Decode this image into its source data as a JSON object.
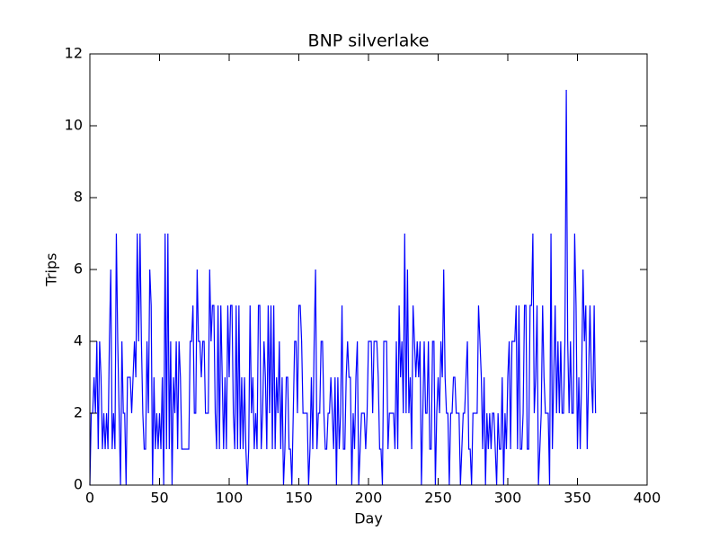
{
  "chart_data": {
    "type": "line",
    "title": "BNP silverlake",
    "x_label": "Day",
    "y_label": "Trips",
    "color": "#0000ff",
    "x": [
      0,
      1,
      2,
      3,
      4,
      5,
      6,
      7,
      8,
      9,
      10,
      11,
      12,
      13,
      14,
      15,
      16,
      17,
      18,
      19,
      20,
      21,
      22,
      23,
      24,
      25,
      26,
      27,
      28,
      29,
      30,
      31,
      32,
      33,
      34,
      35,
      36,
      37,
      38,
      39,
      40,
      41,
      42,
      43,
      44,
      45,
      46,
      47,
      48,
      49,
      50,
      51,
      52,
      53,
      54,
      55,
      56,
      57,
      58,
      59,
      60,
      61,
      62,
      63,
      64,
      65,
      66,
      67,
      68,
      69,
      70,
      71,
      72,
      73,
      74,
      75,
      76,
      77,
      78,
      79,
      80,
      81,
      82,
      83,
      84,
      85,
      86,
      87,
      88,
      89,
      90,
      91,
      92,
      93,
      94,
      95,
      96,
      97,
      98,
      99,
      100,
      101,
      102,
      103,
      104,
      105,
      106,
      107,
      108,
      109,
      110,
      111,
      112,
      113,
      114,
      115,
      116,
      117,
      118,
      119,
      120,
      121,
      122,
      123,
      124,
      125,
      126,
      127,
      128,
      129,
      130,
      131,
      132,
      133,
      134,
      135,
      136,
      137,
      138,
      139,
      140,
      141,
      142,
      143,
      144,
      145,
      146,
      147,
      148,
      149,
      150,
      151,
      152,
      153,
      154,
      155,
      156,
      157,
      158,
      159,
      160,
      161,
      162,
      163,
      164,
      165,
      166,
      167,
      168,
      169,
      170,
      171,
      172,
      173,
      174,
      175,
      176,
      177,
      178,
      179,
      180,
      181,
      182,
      183,
      184,
      185,
      186,
      187,
      188,
      189,
      190,
      191,
      192,
      193,
      194,
      195,
      196,
      197,
      198,
      199,
      200,
      201,
      202,
      203,
      204,
      205,
      206,
      207,
      208,
      209,
      210,
      211,
      212,
      213,
      214,
      215,
      216,
      217,
      218,
      219,
      220,
      221,
      222,
      223,
      224,
      225,
      226,
      227,
      228,
      229,
      230,
      231,
      232,
      233,
      234,
      235,
      236,
      237,
      238,
      239,
      240,
      241,
      242,
      243,
      244,
      245,
      246,
      247,
      248,
      249,
      250,
      251,
      252,
      253,
      254,
      255,
      256,
      257,
      258,
      259,
      260,
      261,
      262,
      263,
      264,
      265,
      266,
      267,
      268,
      269,
      270,
      271,
      272,
      273,
      274,
      275,
      276,
      277,
      278,
      279,
      280,
      281,
      282,
      283,
      284,
      285,
      286,
      287,
      288,
      289,
      290,
      291,
      292,
      293,
      294,
      295,
      296,
      297,
      298,
      299,
      300,
      301,
      302,
      303,
      304,
      305,
      306,
      307,
      308,
      309,
      310,
      311,
      312,
      313,
      314,
      315,
      316,
      317,
      318,
      319,
      320,
      321,
      322,
      323,
      324,
      325,
      326,
      327,
      328,
      329,
      330,
      331,
      332,
      333,
      334,
      335,
      336,
      337,
      338,
      339,
      340,
      341,
      342,
      343,
      344,
      345,
      346,
      347,
      348,
      349,
      350,
      351,
      352,
      353,
      354,
      355,
      356,
      357,
      358,
      359,
      360,
      361,
      362,
      363
    ],
    "values": [
      0,
      2,
      2,
      3,
      2,
      4,
      1,
      4,
      3,
      1,
      2,
      1,
      2,
      1,
      4,
      6,
      1,
      2,
      1,
      7,
      4,
      2,
      0,
      4,
      2,
      2,
      0,
      3,
      3,
      3,
      2,
      3,
      4,
      3,
      7,
      4,
      7,
      4,
      2,
      1,
      1,
      4,
      2,
      6,
      5,
      0,
      3,
      1,
      2,
      1,
      2,
      1,
      3,
      0,
      7,
      1,
      7,
      1,
      4,
      0,
      3,
      2,
      4,
      1,
      4,
      3,
      1,
      1,
      1,
      1,
      1,
      1,
      4,
      4,
      5,
      2,
      2,
      6,
      4,
      4,
      3,
      4,
      4,
      2,
      2,
      2,
      6,
      4,
      5,
      5,
      2,
      1,
      5,
      1,
      5,
      3,
      1,
      3,
      1,
      5,
      3,
      5,
      5,
      2,
      1,
      5,
      1,
      5,
      1,
      3,
      1,
      3,
      1,
      0,
      1,
      5,
      2,
      3,
      1,
      2,
      1,
      5,
      5,
      1,
      2,
      4,
      3,
      1,
      5,
      2,
      5,
      1,
      5,
      1,
      3,
      2,
      4,
      1,
      3,
      0,
      1,
      3,
      3,
      1,
      1,
      0,
      2,
      4,
      4,
      2,
      5,
      5,
      4,
      2,
      2,
      2,
      2,
      0,
      1,
      3,
      1,
      4,
      6,
      1,
      2,
      2,
      4,
      4,
      2,
      1,
      1,
      2,
      2,
      3,
      2,
      1,
      3,
      0,
      3,
      1,
      2,
      5,
      1,
      1,
      3,
      4,
      3,
      3,
      0,
      2,
      1,
      3,
      4,
      0,
      1,
      2,
      2,
      2,
      1,
      2,
      4,
      4,
      4,
      2,
      4,
      4,
      4,
      3,
      1,
      1,
      0,
      4,
      4,
      4,
      1,
      2,
      2,
      2,
      2,
      1,
      4,
      1,
      5,
      3,
      4,
      2,
      7,
      2,
      6,
      2,
      3,
      1,
      5,
      4,
      3,
      4,
      3,
      4,
      0,
      2,
      4,
      2,
      2,
      4,
      1,
      1,
      4,
      4,
      0,
      2,
      3,
      2,
      4,
      3,
      6,
      3,
      2,
      2,
      0,
      2,
      2,
      3,
      3,
      2,
      2,
      2,
      0,
      1,
      2,
      2,
      3,
      4,
      1,
      1,
      0,
      2,
      2,
      2,
      2,
      5,
      4,
      3,
      1,
      3,
      0,
      2,
      1,
      2,
      1,
      2,
      2,
      1,
      0,
      2,
      1,
      1,
      3,
      0,
      2,
      1,
      3,
      4,
      1,
      4,
      4,
      4,
      5,
      1,
      5,
      1,
      1,
      2,
      5,
      5,
      1,
      1,
      5,
      5,
      7,
      2,
      3,
      5,
      0,
      1,
      2,
      5,
      3,
      2,
      2,
      2,
      0,
      7,
      1,
      3,
      5,
      2,
      4,
      2,
      4,
      2,
      2,
      4,
      11,
      4,
      2,
      4,
      2,
      2,
      7,
      5,
      1,
      3,
      1,
      3,
      6,
      4,
      5,
      1,
      3,
      5,
      3,
      2,
      5,
      2
    ],
    "xlim": [
      0,
      400
    ],
    "xticks": [
      0,
      50,
      100,
      150,
      200,
      250,
      300,
      350,
      400
    ],
    "ylim": [
      0,
      12
    ],
    "yticks": [
      0,
      2,
      4,
      6,
      8,
      10,
      12
    ]
  }
}
